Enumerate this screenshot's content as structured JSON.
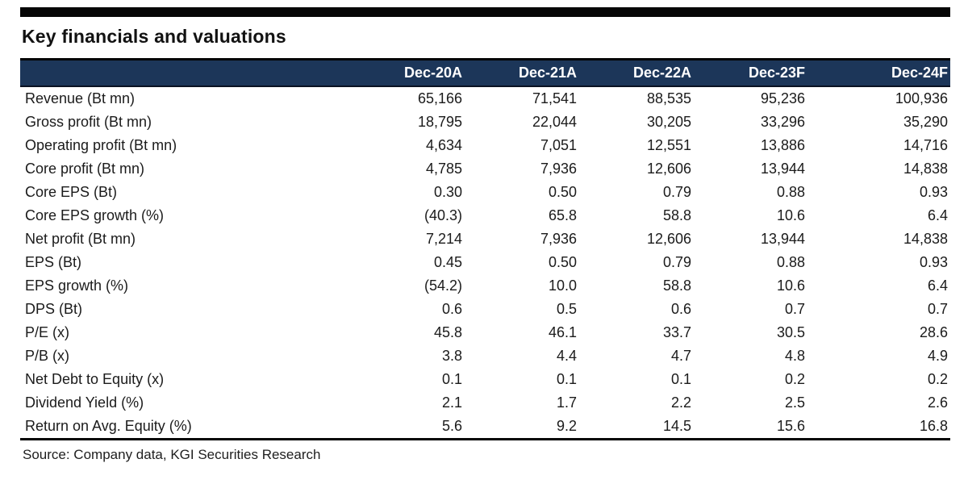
{
  "title": "Key financials and valuations",
  "source": "Source: Company data, KGI Securities Research",
  "colors": {
    "header_bg": "#1c3659",
    "header_text": "#ffffff",
    "accent_bar": "#060606",
    "rule": "#050505"
  },
  "chart_data": {
    "type": "table",
    "columns": [
      "Dec-20A",
      "Dec-21A",
      "Dec-22A",
      "Dec-23F",
      "Dec-24F"
    ],
    "rows": [
      {
        "label": "Revenue (Bt mn)",
        "values": [
          "65,166",
          "71,541",
          "88,535",
          "95,236",
          "100,936"
        ]
      },
      {
        "label": "Gross profit (Bt mn)",
        "values": [
          "18,795",
          "22,044",
          "30,205",
          "33,296",
          "35,290"
        ]
      },
      {
        "label": "Operating profit (Bt mn)",
        "values": [
          "4,634",
          "7,051",
          "12,551",
          "13,886",
          "14,716"
        ]
      },
      {
        "label": "Core profit (Bt mn)",
        "values": [
          "4,785",
          "7,936",
          "12,606",
          "13,944",
          "14,838"
        ]
      },
      {
        "label": "Core EPS (Bt)",
        "values": [
          "0.30",
          "0.50",
          "0.79",
          "0.88",
          "0.93"
        ]
      },
      {
        "label": "Core EPS growth (%)",
        "values": [
          "(40.3)",
          "65.8",
          "58.8",
          "10.6",
          "6.4"
        ]
      },
      {
        "label": "Net profit (Bt mn)",
        "values": [
          "7,214",
          "7,936",
          "12,606",
          "13,944",
          "14,838"
        ]
      },
      {
        "label": "EPS (Bt)",
        "values": [
          "0.45",
          "0.50",
          "0.79",
          "0.88",
          "0.93"
        ]
      },
      {
        "label": "EPS growth (%)",
        "values": [
          "(54.2)",
          "10.0",
          "58.8",
          "10.6",
          "6.4"
        ]
      },
      {
        "label": "DPS (Bt)",
        "values": [
          "0.6",
          "0.5",
          "0.6",
          "0.7",
          "0.7"
        ]
      },
      {
        "label": "P/E (x)",
        "values": [
          "45.8",
          "46.1",
          "33.7",
          "30.5",
          "28.6"
        ]
      },
      {
        "label": "P/B (x)",
        "values": [
          "3.8",
          "4.4",
          "4.7",
          "4.8",
          "4.9"
        ]
      },
      {
        "label": "Net Debt to Equity (x)",
        "values": [
          "0.1",
          "0.1",
          "0.1",
          "0.2",
          "0.2"
        ]
      },
      {
        "label": "Dividend Yield (%)",
        "values": [
          "2.1",
          "1.7",
          "2.2",
          "2.5",
          "2.6"
        ]
      },
      {
        "label": "Return on Avg. Equity (%)",
        "values": [
          "5.6",
          "9.2",
          "14.5",
          "15.6",
          "16.8"
        ]
      }
    ]
  }
}
